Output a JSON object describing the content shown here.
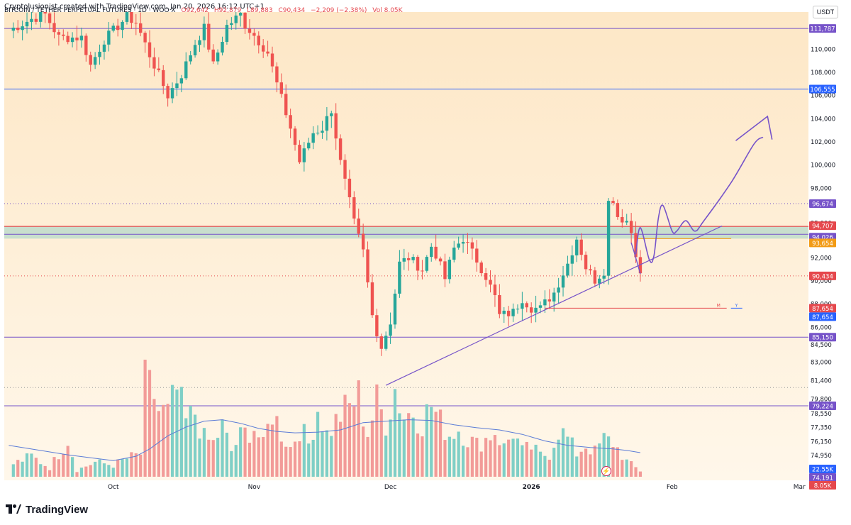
{
  "header": {
    "credit": "Cryptolusionist created with TradingView.com, Jan 20, 2026 16:12 UTC+1",
    "symbol": "BITCOIN / TETHER PERPETUAL FUTURES · 1D · WOO X",
    "ohlc": {
      "o": "O92,642",
      "h": "H92,879",
      "l": "L89,883",
      "c": "C90,434",
      "change": "−2,209 (−2.38%)",
      "vol": "Vol 8.05K"
    },
    "currency": "USDT"
  },
  "brand": {
    "name": "TradingView"
  },
  "colors": {
    "background_top": "#fde7c6",
    "background_bottom": "#fff7ea",
    "up": "#26a69a",
    "down": "#ef5350",
    "vol_up": "#7fcfc6",
    "vol_down": "#f29b98",
    "purple": "#7653c9",
    "red_line": "#e5484d",
    "blue_label": "#2962ff",
    "orange_label": "#f29b16",
    "ma_line": "#5b7bd6",
    "axis_text": "#131722"
  },
  "chart_data": {
    "type": "candlestick",
    "title": "BITCOIN / TETHER PERPETUAL FUTURES · 1D · WOO X",
    "ylim": [
      72800,
      113200
    ],
    "y_ticks": [
      110000,
      108000,
      106000,
      104000,
      102000,
      100000,
      98000,
      95000,
      92000,
      90000,
      88000,
      86000,
      84500,
      83000,
      81400,
      79800,
      78550,
      77350,
      76150,
      74950
    ],
    "x_ticks": [
      {
        "label": "Oct",
        "day": 0
      },
      {
        "label": "Nov",
        "day": 31
      },
      {
        "label": "Dec",
        "day": 61
      },
      {
        "label": "2026",
        "day": 92
      },
      {
        "label": "Feb",
        "day": 123
      },
      {
        "label": "Mar",
        "day": 151
      }
    ],
    "xlim_days": [
      -24,
      153
    ],
    "price_anchors": [
      [
        -23,
        111600
      ],
      [
        -18,
        112600
      ],
      [
        -15,
        113000
      ],
      [
        -12,
        111000
      ],
      [
        -7,
        111000
      ],
      [
        -5,
        108600
      ],
      [
        -2,
        110800
      ],
      [
        3,
        112800
      ],
      [
        5,
        112300
      ],
      [
        8,
        109500
      ],
      [
        12,
        106000
      ],
      [
        15,
        107800
      ],
      [
        18,
        110500
      ],
      [
        20,
        111800
      ],
      [
        22,
        108600
      ],
      [
        25,
        112000
      ],
      [
        28,
        113000
      ],
      [
        29,
        112100
      ],
      [
        31,
        111200
      ],
      [
        34,
        109700
      ],
      [
        36,
        107000
      ],
      [
        39,
        103200
      ],
      [
        41,
        100300
      ],
      [
        44,
        102800
      ],
      [
        46,
        103200
      ],
      [
        48,
        104800
      ],
      [
        50,
        100200
      ],
      [
        52,
        96800
      ],
      [
        53,
        95000
      ],
      [
        55,
        92500
      ],
      [
        57,
        87000
      ],
      [
        59,
        84300
      ],
      [
        61,
        86500
      ],
      [
        63,
        91500
      ],
      [
        65,
        92000
      ],
      [
        68,
        91000
      ],
      [
        70,
        93000
      ],
      [
        71,
        92300
      ],
      [
        73,
        90200
      ],
      [
        75,
        92800
      ],
      [
        77,
        93700
      ],
      [
        80,
        91800
      ],
      [
        82,
        90400
      ],
      [
        84,
        88600
      ],
      [
        85,
        87000
      ],
      [
        88,
        87300
      ],
      [
        90,
        88500
      ],
      [
        92,
        87700
      ],
      [
        94,
        87600
      ],
      [
        95,
        88100
      ],
      [
        97,
        89000
      ],
      [
        100,
        91500
      ],
      [
        102,
        93700
      ],
      [
        103,
        92500
      ],
      [
        104,
        91200
      ],
      [
        106,
        90100
      ],
      [
        108,
        90900
      ],
      [
        109,
        96800
      ],
      [
        110,
        97100
      ],
      [
        111,
        95600
      ],
      [
        113,
        95200
      ],
      [
        114,
        94200
      ],
      [
        115,
        92500
      ],
      [
        116,
        90434
      ]
    ],
    "volume_anchors": [
      [
        -23,
        1.5
      ],
      [
        -18,
        2.8
      ],
      [
        -14,
        1.2
      ],
      [
        -10,
        5.2
      ],
      [
        -8,
        0.9
      ],
      [
        -4,
        2.0
      ],
      [
        0,
        1.6
      ],
      [
        3,
        2.5
      ],
      [
        6,
        3.1
      ],
      [
        7,
        12.5
      ],
      [
        9,
        11.2
      ],
      [
        10,
        9.0
      ],
      [
        12,
        8.5
      ],
      [
        14,
        11.6
      ],
      [
        16,
        7.4
      ],
      [
        18,
        8.8
      ],
      [
        20,
        5.2
      ],
      [
        22,
        4.6
      ],
      [
        24,
        6.8
      ],
      [
        26,
        3.5
      ],
      [
        28,
        5.5
      ],
      [
        31,
        6.8
      ],
      [
        33,
        4.2
      ],
      [
        35,
        9.0
      ],
      [
        37,
        6.0
      ],
      [
        39,
        4.0
      ],
      [
        41,
        6.8
      ],
      [
        43,
        4.5
      ],
      [
        45,
        9.5
      ],
      [
        47,
        5.8
      ],
      [
        49,
        7.5
      ],
      [
        50,
        8.5
      ],
      [
        52,
        9.5
      ],
      [
        54,
        11.0
      ],
      [
        56,
        6.0
      ],
      [
        58,
        10.2
      ],
      [
        60,
        7.5
      ],
      [
        62,
        12.1
      ],
      [
        64,
        8.3
      ],
      [
        66,
        9.0
      ],
      [
        68,
        7.5
      ],
      [
        70,
        9.8
      ],
      [
        72,
        7.4
      ],
      [
        74,
        5.8
      ],
      [
        76,
        6.6
      ],
      [
        78,
        5.2
      ],
      [
        80,
        4.4
      ],
      [
        82,
        5.2
      ],
      [
        84,
        6.3
      ],
      [
        86,
        4.0
      ],
      [
        88,
        6.2
      ],
      [
        90,
        3.5
      ],
      [
        92,
        4.0
      ],
      [
        94,
        2.9
      ],
      [
        96,
        3.1
      ],
      [
        98,
        6.5
      ],
      [
        100,
        5.2
      ],
      [
        102,
        3.2
      ],
      [
        104,
        4.3
      ],
      [
        106,
        3.4
      ],
      [
        108,
        5.1
      ],
      [
        110,
        4.7
      ],
      [
        113,
        2.1
      ],
      [
        116,
        0.8
      ]
    ],
    "volume_ma": [
      [
        -23,
        4.3
      ],
      [
        -10,
        3.0
      ],
      [
        0,
        2.2
      ],
      [
        5,
        2.8
      ],
      [
        8,
        3.8
      ],
      [
        12,
        5.6
      ],
      [
        16,
        6.8
      ],
      [
        20,
        7.6
      ],
      [
        24,
        7.8
      ],
      [
        28,
        7.3
      ],
      [
        32,
        6.6
      ],
      [
        36,
        6.2
      ],
      [
        40,
        6.0
      ],
      [
        45,
        6.1
      ],
      [
        50,
        6.4
      ],
      [
        55,
        7.4
      ],
      [
        60,
        7.6
      ],
      [
        65,
        7.8
      ],
      [
        70,
        7.7
      ],
      [
        75,
        7.1
      ],
      [
        80,
        6.7
      ],
      [
        85,
        6.4
      ],
      [
        90,
        5.8
      ],
      [
        95,
        4.9
      ],
      [
        100,
        4.3
      ],
      [
        105,
        4.0
      ],
      [
        110,
        3.8
      ],
      [
        113,
        3.6
      ],
      [
        116,
        3.3
      ]
    ],
    "volume_ylim": [
      0,
      16
    ],
    "levels": [
      {
        "name": "resistance-111787",
        "value": 111787,
        "label": "111,787",
        "style": "purple"
      },
      {
        "name": "resistance-106555",
        "value": 106555,
        "label": "106,555",
        "style": "blue"
      },
      {
        "name": "level-96674",
        "value": 96674,
        "label": "96,674",
        "style": "purple-dotted"
      },
      {
        "name": "level-94707",
        "value": 94707,
        "label": "94,707",
        "style": "red"
      },
      {
        "name": "level-94026",
        "value": 94026,
        "label": "94,026",
        "style": "purple"
      },
      {
        "name": "level-93654",
        "value": 93654,
        "label": "93,654",
        "style": "orange"
      },
      {
        "name": "current-price",
        "value": 90434,
        "label": "90,434",
        "style": "red-dotted"
      },
      {
        "name": "level-87654-red",
        "value": 87654,
        "label": "87,654",
        "style": "red"
      },
      {
        "name": "level-87654-blue",
        "value": 87654,
        "label": "87,654",
        "style": "blue"
      },
      {
        "name": "support-85150",
        "value": 85150,
        "label": "85,150",
        "style": "purple"
      },
      {
        "name": "level-80800",
        "value": 80800,
        "label": "",
        "style": "gray-dotted"
      },
      {
        "name": "support-79224",
        "value": 79224,
        "label": "79,224",
        "style": "purple"
      },
      {
        "name": "volume-ma",
        "value": 74400,
        "label": "22.55K",
        "style": "blue"
      },
      {
        "name": "volume-mid",
        "value": 73900,
        "label": "74,191",
        "style": "purple"
      },
      {
        "name": "volume-current",
        "value": 73300,
        "label": "8.05K",
        "style": "red"
      }
    ],
    "zone": {
      "top": 94707,
      "bottom": 93654,
      "from_day": -24
    },
    "trendline": {
      "from": [
        60,
        81000
      ],
      "to": [
        134,
        94750
      ]
    },
    "marker_line": {
      "value": 87654,
      "from_day": 95,
      "to_day": 135,
      "m_label": "M",
      "y_label": "Y"
    },
    "projection": [
      [
        115,
        92300
      ],
      [
        116,
        94600
      ],
      [
        118,
        91800
      ],
      [
        119,
        92200
      ],
      [
        120,
        95500
      ],
      [
        121,
        96500
      ],
      [
        123,
        94300
      ],
      [
        124,
        94300
      ],
      [
        126,
        95200
      ],
      [
        128,
        94300
      ],
      [
        130,
        95200
      ],
      [
        136,
        98500
      ],
      [
        141,
        101800
      ],
      [
        143,
        102400
      ]
    ],
    "projection_dip": [
      [
        114,
        93300
      ],
      [
        115,
        92000
      ],
      [
        116,
        90600
      ]
    ],
    "arrowhead": [
      [
        137,
        102100
      ],
      [
        144,
        104200
      ],
      [
        145,
        102200
      ]
    ]
  }
}
